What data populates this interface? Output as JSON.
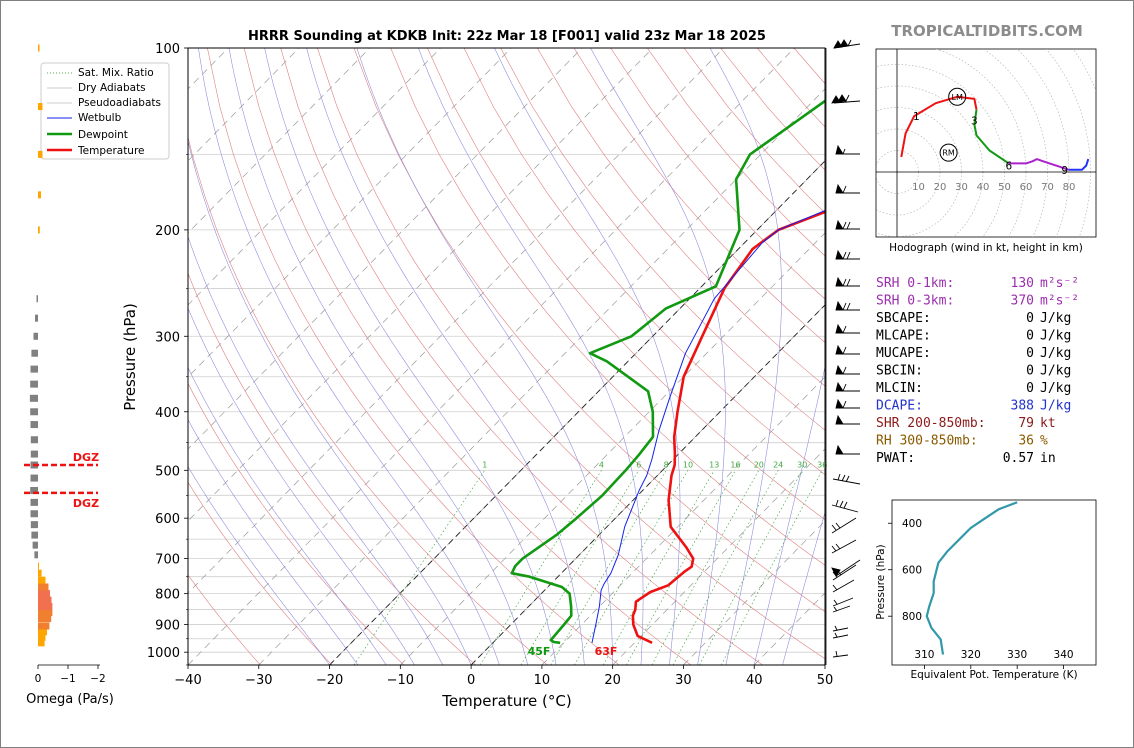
{
  "watermark": "TROPICALTIDBITS.COM",
  "chart_data": [
    {
      "type": "line",
      "name": "skew-t",
      "title": "HRRR Sounding at KDKB Init: 22z Mar 18 [F001] valid 23z Mar 18 2025",
      "xlabel": "Temperature (°C)",
      "ylabel": "Pressure (hPa)",
      "xlim": [
        -40,
        50
      ],
      "ylim": [
        1050,
        100
      ],
      "y_scale": "log",
      "x_ticks": [
        "−40",
        "−30",
        "−20",
        "−10",
        "0",
        "10",
        "20",
        "30",
        "40",
        "50"
      ],
      "y_ticks": [
        "100",
        "200",
        "300",
        "400",
        "500",
        "600",
        "700",
        "800",
        "900",
        "1000"
      ],
      "legend": [
        "Sat. Mix. Ratio",
        "Dry Adiabats",
        "Pseudoadiabats",
        "Wetbulb",
        "Dewpoint",
        "Temperature"
      ],
      "legend_position": "top-left",
      "mixing_ratio_labels": [
        "1",
        "4",
        "6",
        "8",
        "10",
        "13",
        "16",
        "20",
        "24",
        "30",
        "36"
      ],
      "surface_labels": {
        "dewpoint": "45F",
        "temperature": "63F"
      },
      "series": [
        {
          "name": "Temperature",
          "color": "#ee1111",
          "points": [
            [
              22.5,
              965
            ],
            [
              19.5,
              940
            ],
            [
              17.3,
              900
            ],
            [
              16,
              870
            ],
            [
              15.5,
              850
            ],
            [
              14.5,
              825
            ],
            [
              15.2,
              795
            ],
            [
              16.8,
              775
            ],
            [
              17.2,
              735
            ],
            [
              17.5,
              722
            ],
            [
              16.6,
              700
            ],
            [
              14,
              670
            ],
            [
              9,
              620
            ],
            [
              5,
              560
            ],
            [
              2,
              510
            ],
            [
              1,
              490
            ],
            [
              -0.5,
              470
            ],
            [
              -3,
              440
            ],
            [
              -6,
              400
            ],
            [
              -10,
              350
            ],
            [
              -13,
              300
            ],
            [
              -16.5,
              250
            ],
            [
              -18,
              215
            ],
            [
              -17,
              200
            ],
            [
              -9,
              175
            ],
            [
              -4,
              150
            ],
            [
              -2,
              125
            ],
            [
              -3,
              100
            ]
          ]
        },
        {
          "name": "Dewpoint",
          "color": "#119911",
          "points": [
            [
              9.5,
              965
            ],
            [
              8.5,
              962
            ],
            [
              7.8,
              955
            ],
            [
              7.5,
              900
            ],
            [
              7.3,
              870
            ],
            [
              6,
              840
            ],
            [
              4,
              800
            ],
            [
              2,
              780
            ],
            [
              -4,
              750
            ],
            [
              -7,
              740
            ],
            [
              -7.5,
              720
            ],
            [
              -7.5,
              700
            ],
            [
              -6,
              640
            ],
            [
              -5.5,
              600
            ],
            [
              -5,
              550
            ],
            [
              -5.2,
              500
            ],
            [
              -5.5,
              470
            ],
            [
              -6,
              440
            ],
            [
              -9.5,
              400
            ],
            [
              -13,
              370
            ],
            [
              -23,
              330
            ],
            [
              -26.5,
              320
            ],
            [
              -23,
              300
            ],
            [
              -22,
              270
            ],
            [
              -18,
              248
            ],
            [
              -22.5,
              200
            ],
            [
              -30,
              165
            ],
            [
              -31.5,
              150
            ],
            [
              -28,
              120
            ],
            [
              -25,
              100
            ]
          ]
        },
        {
          "name": "Wetbulb",
          "color": "#1122ee",
          "points": [
            [
              14,
              965
            ],
            [
              12,
              900
            ],
            [
              10,
              840
            ],
            [
              8,
              790
            ],
            [
              7.5,
              770
            ],
            [
              7,
              740
            ],
            [
              5.5,
              690
            ],
            [
              2.5,
              620
            ],
            [
              -0.5,
              540
            ],
            [
              -1.5,
              510
            ],
            [
              -3,
              480
            ],
            [
              -6,
              430
            ],
            [
              -9,
              380
            ],
            [
              -13,
              320
            ],
            [
              -16.5,
              260
            ],
            [
              -17.5,
              210
            ],
            [
              -17,
              200
            ],
            [
              -9,
              172
            ],
            [
              -2.5,
              153
            ],
            [
              -3,
              100
            ]
          ]
        }
      ]
    },
    {
      "type": "bar",
      "name": "omega",
      "xlabel": "Omega (Pa/s)",
      "x_ticks": [
        "0",
        "−1",
        "−2"
      ],
      "dgz_label": "DGZ",
      "dgz_pressures": [
        490,
        545
      ],
      "values": [
        [
          965,
          -0.22,
          "#ffa500"
        ],
        [
          945,
          -0.25,
          "#ffa500"
        ],
        [
          925,
          -0.3,
          "#ffa500"
        ],
        [
          905,
          -0.38,
          "#f08030"
        ],
        [
          880,
          -0.44,
          "#f08030"
        ],
        [
          860,
          -0.48,
          "#f08030"
        ],
        [
          840,
          -0.48,
          "#f07050"
        ],
        [
          820,
          -0.45,
          "#f07050"
        ],
        [
          800,
          -0.4,
          "#f07050"
        ],
        [
          780,
          -0.35,
          "#f08030"
        ],
        [
          760,
          -0.25,
          "#ffa500"
        ],
        [
          740,
          -0.12,
          "#ffa500"
        ],
        [
          720,
          -0.02,
          "#ffa500"
        ],
        [
          690,
          0.12,
          "#808080"
        ],
        [
          665,
          0.18,
          "#808080"
        ],
        [
          640,
          0.22,
          "#808080"
        ],
        [
          615,
          0.24,
          "#808080"
        ],
        [
          590,
          0.25,
          "#808080"
        ],
        [
          565,
          0.25,
          "#808080"
        ],
        [
          540,
          0.26,
          "#808080"
        ],
        [
          515,
          0.25,
          "#808080"
        ],
        [
          490,
          0.25,
          "#808080"
        ],
        [
          470,
          0.24,
          "#808080"
        ],
        [
          445,
          0.24,
          "#808080"
        ],
        [
          420,
          0.25,
          "#808080"
        ],
        [
          400,
          0.26,
          "#808080"
        ],
        [
          380,
          0.27,
          "#808080"
        ],
        [
          360,
          0.26,
          "#808080"
        ],
        [
          340,
          0.25,
          "#808080"
        ],
        [
          320,
          0.22,
          "#808080"
        ],
        [
          300,
          0.15,
          "#808080"
        ],
        [
          280,
          0.1,
          "#808080"
        ],
        [
          260,
          0.05,
          "#808080"
        ],
        [
          200,
          -0.06,
          "#ffa500"
        ],
        [
          175,
          -0.1,
          "#ffa500"
        ],
        [
          150,
          -0.15,
          "#ffa500"
        ],
        [
          125,
          -0.15,
          "#ffa500"
        ],
        [
          100,
          -0.05,
          "#ffa500"
        ]
      ]
    },
    {
      "type": "line",
      "name": "hodograph",
      "xlabel": "Hodograph (wind in kt, height in km)",
      "ring_labels": [
        "10",
        "20",
        "30",
        "40",
        "50",
        "60",
        "70",
        "80"
      ],
      "markers": [
        "1",
        "3",
        "6",
        "9"
      ],
      "motion_labels": [
        "LM",
        "RM"
      ],
      "series": [
        {
          "color": "#ee1111",
          "points": [
            [
              2,
              7
            ],
            [
              4,
              18
            ],
            [
              8,
              26
            ],
            [
              18,
              32
            ],
            [
              28,
              35
            ],
            [
              36,
              34
            ],
            [
              37,
              29
            ]
          ]
        },
        {
          "color": "#119911",
          "points": [
            [
              37,
              29
            ],
            [
              36,
              22
            ],
            [
              37,
              17
            ],
            [
              43,
              10
            ],
            [
              52,
              4
            ]
          ]
        },
        {
          "color": "#aa22cc",
          "points": [
            [
              52,
              4
            ],
            [
              60,
              4
            ],
            [
              63,
              5
            ],
            [
              65,
              6
            ],
            [
              68,
              5
            ],
            [
              74,
              3
            ],
            [
              80,
              1
            ]
          ]
        },
        {
          "color": "#2233ff",
          "points": [
            [
              80,
              1
            ],
            [
              83,
              1
            ],
            [
              86,
              1
            ],
            [
              88,
              3
            ],
            [
              89,
              6
            ]
          ]
        }
      ],
      "marker_points": [
        [
          9,
          26
        ],
        [
          36,
          24
        ],
        [
          52,
          3
        ],
        [
          78,
          1
        ]
      ],
      "lm_point": [
        28,
        35
      ],
      "rm_point": [
        24,
        9
      ]
    },
    {
      "type": "line",
      "name": "theta-e",
      "xlabel": "Equivalent Pot. Temperature (K)",
      "ylabel": "Pressure (hPa)",
      "x_ticks": [
        "310",
        "320",
        "330",
        "340"
      ],
      "y_ticks": [
        "400",
        "600",
        "800"
      ],
      "xlim": [
        303,
        347
      ],
      "ylim": [
        1010,
        300
      ],
      "series": [
        {
          "color": "#3399aa",
          "points": [
            [
              314,
              965
            ],
            [
              313.5,
              900
            ],
            [
              311.5,
              850
            ],
            [
              310.5,
              800
            ],
            [
              311,
              760
            ],
            [
              312,
              700
            ],
            [
              312,
              650
            ],
            [
              313,
              570
            ],
            [
              315,
              520
            ],
            [
              318,
              460
            ],
            [
              320,
              420
            ],
            [
              323,
              380
            ],
            [
              326,
              340
            ],
            [
              330,
              310
            ]
          ]
        }
      ]
    }
  ],
  "parameters": [
    {
      "label": "SRH 0-1km:",
      "value": "130",
      "unit": "m²s⁻²",
      "color": "#9b2fae"
    },
    {
      "label": "SRH 0-3km:",
      "value": "370",
      "unit": "m²s⁻²",
      "color": "#9b2fae"
    },
    {
      "label": "SBCAPE:",
      "value": "0",
      "unit": "J/kg",
      "color": "#000000"
    },
    {
      "label": "MLCAPE:",
      "value": "0",
      "unit": "J/kg",
      "color": "#000000"
    },
    {
      "label": "MUCAPE:",
      "value": "0",
      "unit": "J/kg",
      "color": "#000000"
    },
    {
      "label": "SBCIN:",
      "value": "0",
      "unit": "J/kg",
      "color": "#000000"
    },
    {
      "label": "MLCIN:",
      "value": "0",
      "unit": "J/kg",
      "color": "#000000"
    },
    {
      "label": "DCAPE:",
      "value": "388",
      "unit": "J/kg",
      "color": "#2233cc"
    },
    {
      "label": "SHR 200-850mb:",
      "value": "79",
      "unit": "kt",
      "color": "#8b1a1a"
    },
    {
      "label": "RH 300-850mb:",
      "value": "36",
      "unit": "%",
      "color": "#8b5a00"
    },
    {
      "label": "PWAT:",
      "value": "0.57",
      "unit": "in",
      "color": "#000000"
    }
  ]
}
